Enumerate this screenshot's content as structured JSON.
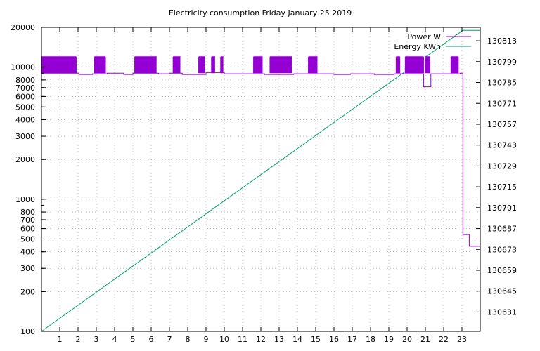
{
  "chart_data": {
    "type": "line",
    "title": "Electricity consumption Friday January 25 2019",
    "xlabel": "",
    "ylabel": "",
    "y2label": "",
    "grid": true,
    "legend_position": "top-right",
    "x_range": [
      0,
      24
    ],
    "x_ticks": [
      1,
      2,
      3,
      4,
      5,
      6,
      7,
      8,
      9,
      10,
      11,
      12,
      13,
      14,
      15,
      16,
      17,
      18,
      19,
      20,
      21,
      22,
      23
    ],
    "y_scale": "log",
    "y_range": [
      100,
      20000
    ],
    "y_ticks": [
      100,
      200,
      300,
      400,
      500,
      600,
      700,
      800,
      1000,
      2000,
      3000,
      4000,
      5000,
      6000,
      7000,
      8000,
      10000,
      20000
    ],
    "y2_range": [
      130618,
      130822
    ],
    "y2_ticks": [
      130631,
      130645,
      130659,
      130673,
      130687,
      130701,
      130715,
      130729,
      130743,
      130757,
      130771,
      130785,
      130799,
      130813
    ],
    "colors": {
      "power": "#9400d3",
      "energy": "#009e73",
      "grid": "#a0a0a0"
    },
    "series": [
      {
        "name": "Power W",
        "axis": "y",
        "baseline_w": 9000,
        "spike_w": 12000,
        "spike_intervals": [
          [
            0.0,
            1.9
          ],
          [
            2.9,
            3.5
          ],
          [
            5.1,
            6.3
          ],
          [
            7.2,
            7.6
          ],
          [
            8.6,
            8.95
          ],
          [
            9.3,
            9.5
          ],
          [
            9.8,
            9.95
          ],
          [
            11.6,
            12.1
          ],
          [
            12.5,
            13.7
          ],
          [
            14.6,
            15.1
          ],
          [
            19.4,
            19.6
          ],
          [
            19.9,
            20.9
          ],
          [
            21.0,
            21.25
          ],
          [
            22.4,
            22.8
          ]
        ],
        "points": [
          [
            1.95,
            9000
          ],
          [
            2.05,
            8800
          ],
          [
            2.8,
            8900
          ],
          [
            3.6,
            9000
          ],
          [
            4.5,
            8800
          ],
          [
            5.0,
            9000
          ],
          [
            6.4,
            8900
          ],
          [
            7.0,
            9000
          ],
          [
            7.7,
            8800
          ],
          [
            8.5,
            8800
          ],
          [
            9.0,
            9100
          ],
          [
            10.0,
            8900
          ],
          [
            11.5,
            8900
          ],
          [
            12.2,
            8800
          ],
          [
            13.8,
            8900
          ],
          [
            14.5,
            8900
          ],
          [
            15.2,
            8900
          ],
          [
            16.0,
            8800
          ],
          [
            16.9,
            8900
          ],
          [
            17.5,
            8900
          ],
          [
            18.2,
            8800
          ],
          [
            19.3,
            8900
          ],
          [
            20.9,
            7100
          ],
          [
            21.3,
            8900
          ],
          [
            22.3,
            8900
          ],
          [
            22.9,
            9000
          ],
          [
            23.02,
            9000
          ],
          [
            23.05,
            540
          ],
          [
            23.35,
            540
          ],
          [
            23.4,
            440
          ],
          [
            24.0,
            440
          ]
        ]
      },
      {
        "name": "Energy KWh",
        "axis": "y2",
        "points": [
          [
            0,
            130618
          ],
          [
            23.05,
            130820
          ],
          [
            24,
            130820
          ]
        ]
      }
    ]
  }
}
